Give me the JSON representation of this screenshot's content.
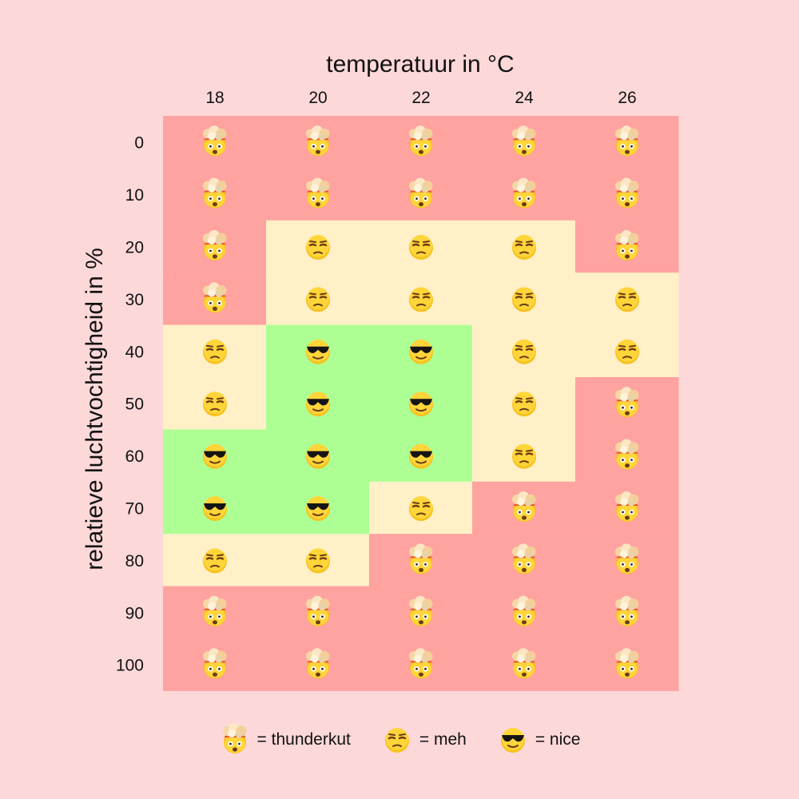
{
  "chart_data": {
    "type": "heatmap",
    "xlabel": "temperatuur in °C",
    "ylabel": "relatieve luchtvochtigheid in %",
    "x": [
      "18",
      "20",
      "22",
      "24",
      "26"
    ],
    "y": [
      "0",
      "10",
      "20",
      "30",
      "40",
      "50",
      "60",
      "70",
      "80",
      "90",
      "100"
    ],
    "cells": [
      [
        "thunderkut",
        "thunderkut",
        "thunderkut",
        "thunderkut",
        "thunderkut"
      ],
      [
        "thunderkut",
        "thunderkut",
        "thunderkut",
        "thunderkut",
        "thunderkut"
      ],
      [
        "thunderkut",
        "meh",
        "meh",
        "meh",
        "thunderkut"
      ],
      [
        "thunderkut",
        "meh",
        "meh",
        "meh",
        "meh"
      ],
      [
        "meh",
        "nice",
        "nice",
        "meh",
        "meh"
      ],
      [
        "meh",
        "nice",
        "nice",
        "meh",
        "thunderkut"
      ],
      [
        "nice",
        "nice",
        "nice",
        "meh",
        "thunderkut"
      ],
      [
        "nice",
        "nice",
        "meh",
        "thunderkut",
        "thunderkut"
      ],
      [
        "meh",
        "meh",
        "thunderkut",
        "thunderkut",
        "thunderkut"
      ],
      [
        "thunderkut",
        "thunderkut",
        "thunderkut",
        "thunderkut",
        "thunderkut"
      ],
      [
        "thunderkut",
        "thunderkut",
        "thunderkut",
        "thunderkut",
        "thunderkut"
      ]
    ],
    "categories": {
      "thunderkut": {
        "color": "#ffa3a0",
        "icon": "exploding-head-icon"
      },
      "meh": {
        "color": "#fff0c8",
        "icon": "unamused-face-icon"
      },
      "nice": {
        "color": "#adff93",
        "icon": "sunglasses-face-icon"
      }
    }
  },
  "legend": [
    {
      "key": "thunderkut",
      "label": "= thunderkut",
      "icon": "exploding-head-icon"
    },
    {
      "key": "meh",
      "label": "= meh",
      "icon": "unamused-face-icon"
    },
    {
      "key": "nice",
      "label": "= nice",
      "icon": "sunglasses-face-icon"
    }
  ]
}
